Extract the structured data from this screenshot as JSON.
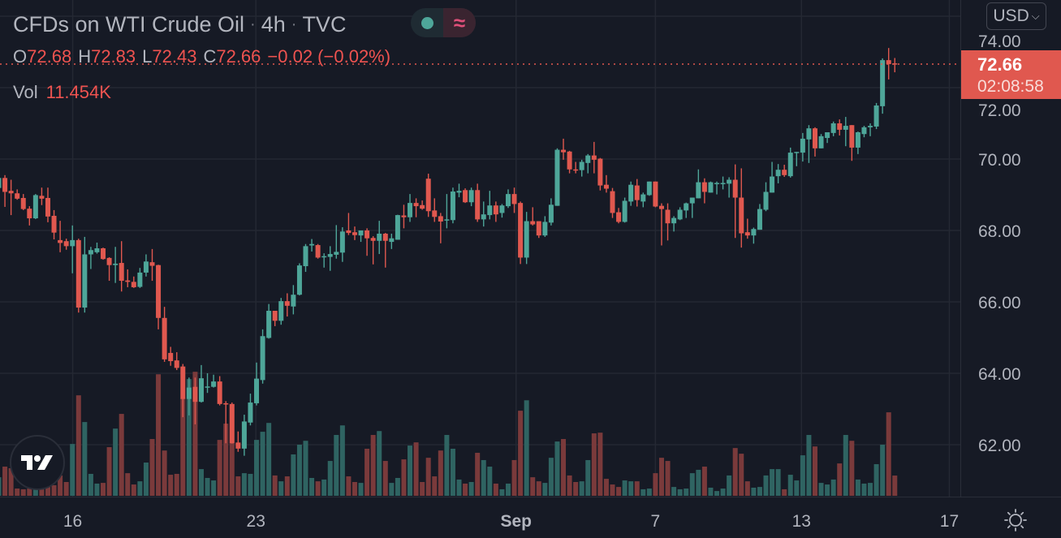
{
  "header": {
    "symbol": "CFDs on WTI Crude Oil",
    "separator": "·",
    "interval": "4h",
    "exchange": "TVC",
    "status_dot_color": "#4ea699",
    "indicator_icon": "≈"
  },
  "ohlc": {
    "o_label": "O",
    "o": "72.68",
    "h_label": "H",
    "h": "72.83",
    "l_label": "L",
    "l": "72.43",
    "c_label": "C",
    "c": "72.66",
    "change": "−0.02 (−0.02%)"
  },
  "volume": {
    "label": "Vol",
    "value": "11.454K"
  },
  "currency_button": {
    "label": "USD",
    "icon": "chevron-down-icon"
  },
  "last_price": {
    "price": "72.66",
    "countdown": "02:08:58"
  },
  "icons": {
    "logo": "tradingview-logo",
    "settings": "sun-gear-icon"
  },
  "colors": {
    "up": "#4ea699",
    "down": "#e0584f",
    "background": "#161a25",
    "grid": "#242833"
  },
  "chart_data": {
    "type": "candlestick",
    "interval": "4h",
    "last_price": 72.66,
    "y_axis": {
      "ticks": [
        "74.00",
        "72.00",
        "70.00",
        "68.00",
        "66.00",
        "64.00",
        "62.00"
      ],
      "range": [
        60.5,
        74.2
      ]
    },
    "x_axis": {
      "ticks": [
        "16",
        "23",
        "Sep",
        "7",
        "13",
        "17"
      ]
    },
    "grid": true,
    "volume_unit": "K",
    "candles_ohlcv": [
      [
        69.19,
        69.55,
        69.1,
        69.47,
        10.5
      ],
      [
        69.47,
        69.55,
        68.66,
        69.08,
        16.5
      ],
      [
        69.11,
        69.42,
        68.43,
        69.04,
        15.6
      ],
      [
        69.04,
        69.15,
        68.86,
        68.89,
        4.1
      ],
      [
        68.91,
        69.02,
        68.57,
        68.6,
        3.7
      ],
      [
        68.61,
        68.68,
        68.14,
        68.34,
        4.1
      ],
      [
        68.34,
        69.02,
        68.32,
        68.99,
        5.0
      ],
      [
        68.97,
        69.2,
        68.71,
        68.89,
        5.5
      ],
      [
        68.91,
        69.2,
        68.23,
        68.39,
        6.9
      ],
      [
        68.41,
        68.57,
        67.75,
        67.94,
        6.0
      ],
      [
        67.73,
        68.27,
        67.39,
        67.65,
        11.5
      ],
      [
        67.7,
        67.77,
        67.46,
        67.56,
        7.8
      ],
      [
        67.56,
        68.14,
        66.8,
        67.73,
        29.3
      ],
      [
        67.73,
        67.77,
        65.7,
        65.84,
        56.8
      ],
      [
        65.84,
        67.82,
        65.7,
        67.33,
        41.7
      ],
      [
        67.33,
        67.54,
        66.92,
        67.45,
        12.4
      ],
      [
        67.39,
        67.66,
        67.35,
        67.5,
        6.9
      ],
      [
        67.5,
        67.52,
        67.18,
        67.2,
        7.3
      ],
      [
        67.23,
        67.25,
        66.59,
        67.03,
        27.5
      ],
      [
        67.03,
        67.54,
        66.53,
        67.07,
        38.0
      ],
      [
        67.09,
        67.7,
        66.29,
        66.59,
        46.3
      ],
      [
        66.6,
        66.91,
        66.41,
        66.56,
        12.8
      ],
      [
        66.56,
        66.71,
        66.39,
        66.41,
        6.4
      ],
      [
        66.42,
        66.95,
        66.39,
        66.82,
        8.2
      ],
      [
        66.82,
        67.33,
        66.71,
        67.13,
        18.8
      ],
      [
        67.11,
        67.48,
        66.59,
        67.01,
        32.1
      ],
      [
        67.03,
        67.04,
        65.23,
        65.55,
        68.7
      ],
      [
        65.55,
        65.86,
        64.32,
        64.39,
        25.6
      ],
      [
        64.57,
        64.74,
        64.21,
        64.34,
        11.9
      ],
      [
        64.36,
        64.59,
        64.09,
        64.15,
        12.4
      ],
      [
        64.19,
        64.26,
        62.77,
        63.28,
        55.4
      ],
      [
        63.28,
        63.88,
        62.82,
        63.6,
        66.0
      ],
      [
        63.62,
        63.88,
        62.57,
        63.2,
        70.1
      ],
      [
        63.2,
        64.23,
        63.18,
        63.86,
        15.1
      ],
      [
        63.62,
        64.0,
        63.45,
        63.63,
        10.1
      ],
      [
        63.62,
        63.96,
        63.6,
        63.77,
        8.7
      ],
      [
        63.77,
        63.92,
        63.1,
        63.14,
        31.6
      ],
      [
        63.16,
        63.22,
        62.04,
        63.15,
        40.8
      ],
      [
        63.14,
        63.18,
        62.03,
        62.04,
        29.8
      ],
      [
        62.06,
        62.37,
        61.8,
        61.89,
        11.0
      ],
      [
        61.89,
        62.84,
        61.69,
        62.65,
        12.8
      ],
      [
        62.62,
        63.43,
        62.54,
        63.18,
        12.4
      ],
      [
        63.16,
        64.3,
        63.1,
        63.85,
        31.6
      ],
      [
        63.81,
        65.23,
        63.71,
        65.04,
        36.2
      ],
      [
        64.99,
        65.94,
        64.97,
        65.75,
        41.2
      ],
      [
        65.75,
        65.75,
        65.32,
        65.47,
        11.5
      ],
      [
        65.47,
        66.11,
        65.36,
        66.02,
        8.2
      ],
      [
        66.02,
        66.24,
        65.59,
        65.89,
        11.0
      ],
      [
        65.87,
        66.47,
        65.65,
        66.2,
        23.4
      ],
      [
        66.2,
        67.08,
        66.18,
        67.02,
        28.9
      ],
      [
        67.0,
        67.62,
        66.84,
        67.56,
        31.1
      ],
      [
        67.58,
        67.76,
        67.41,
        67.62,
        10.1
      ],
      [
        67.59,
        67.62,
        67.21,
        67.24,
        8.2
      ],
      [
        67.26,
        67.36,
        66.96,
        67.28,
        9.2
      ],
      [
        67.26,
        67.56,
        66.87,
        67.34,
        19.7
      ],
      [
        67.32,
        68.15,
        67.21,
        67.4,
        34.4
      ],
      [
        67.38,
        68.09,
        67.12,
        67.97,
        39.8
      ],
      [
        68.0,
        68.49,
        67.87,
        67.93,
        11.0
      ],
      [
        67.95,
        68.11,
        67.73,
        67.87,
        7.8
      ],
      [
        67.86,
        68.0,
        67.68,
        68.0,
        7.3
      ],
      [
        68.0,
        68.06,
        67.29,
        67.78,
        26.6
      ],
      [
        67.79,
        67.84,
        67.05,
        67.71,
        34.4
      ],
      [
        67.71,
        68.27,
        67.34,
        67.91,
        36.6
      ],
      [
        67.91,
        67.93,
        66.96,
        67.71,
        19.7
      ],
      [
        67.68,
        67.91,
        67.48,
        67.78,
        7.3
      ],
      [
        67.74,
        68.44,
        67.74,
        68.43,
        10.1
      ],
      [
        68.42,
        68.72,
        68.06,
        68.37,
        20.6
      ],
      [
        68.37,
        69.02,
        68.24,
        68.77,
        28.4
      ],
      [
        68.77,
        68.9,
        68.37,
        68.68,
        30.2
      ],
      [
        68.71,
        68.84,
        68.58,
        68.61,
        7.8
      ],
      [
        69.45,
        69.59,
        68.38,
        68.54,
        21.5
      ],
      [
        68.56,
        68.9,
        68.24,
        68.38,
        11.0
      ],
      [
        68.4,
        68.49,
        67.64,
        68.25,
        25.6
      ],
      [
        68.29,
        69.02,
        68.06,
        68.31,
        34.4
      ],
      [
        68.29,
        69.2,
        68.2,
        69.09,
        26.6
      ],
      [
        69.06,
        69.31,
        68.93,
        69.11,
        9.2
      ],
      [
        69.13,
        69.18,
        68.77,
        68.79,
        6.9
      ],
      [
        68.79,
        69.2,
        68.68,
        69.13,
        7.8
      ],
      [
        69.13,
        69.31,
        68.24,
        68.31,
        24.3
      ],
      [
        68.31,
        68.81,
        68.11,
        68.45,
        20.2
      ],
      [
        68.43,
        69.11,
        68.31,
        68.7,
        16.5
      ],
      [
        68.7,
        68.81,
        68.24,
        68.45,
        6.9
      ],
      [
        68.49,
        68.74,
        68.36,
        68.7,
        3.7
      ],
      [
        68.68,
        69.15,
        68.63,
        69.02,
        6.9
      ],
      [
        69.02,
        69.2,
        68.49,
        68.74,
        20.2
      ],
      [
        68.77,
        68.81,
        67.06,
        67.24,
        48.1
      ],
      [
        67.24,
        68.52,
        67.06,
        68.26,
        54.0
      ],
      [
        68.26,
        68.65,
        68.14,
        68.17,
        10.5
      ],
      [
        68.26,
        68.26,
        67.79,
        67.86,
        8.2
      ],
      [
        67.86,
        68.4,
        67.82,
        68.24,
        7.3
      ],
      [
        68.22,
        68.9,
        68.14,
        68.72,
        21.5
      ],
      [
        68.69,
        70.3,
        68.69,
        70.26,
        30.7
      ],
      [
        70.26,
        70.57,
        69.98,
        70.19,
        32.1
      ],
      [
        70.21,
        70.23,
        69.6,
        69.71,
        11.5
      ],
      [
        69.71,
        69.92,
        69.6,
        69.69,
        7.8
      ],
      [
        69.69,
        69.98,
        69.51,
        69.92,
        8.2
      ],
      [
        69.89,
        70.14,
        69.6,
        70.1,
        20.2
      ],
      [
        70.1,
        70.48,
        69.6,
        69.98,
        35.3
      ],
      [
        70.01,
        70.03,
        69.12,
        69.26,
        35.7
      ],
      [
        69.28,
        69.55,
        69.06,
        69.17,
        9.6
      ],
      [
        69.1,
        69.19,
        68.35,
        68.49,
        6.4
      ],
      [
        68.51,
        68.63,
        68.2,
        68.24,
        5.0
      ],
      [
        68.24,
        68.92,
        68.22,
        68.83,
        8.7
      ],
      [
        68.81,
        69.37,
        68.69,
        69.28,
        8.2
      ],
      [
        69.26,
        69.44,
        68.67,
        68.85,
        8.2
      ],
      [
        68.81,
        69.06,
        68.65,
        69.01,
        3.7
      ],
      [
        68.99,
        69.37,
        68.97,
        69.37,
        4.1
      ],
      [
        69.37,
        69.37,
        68.65,
        68.67,
        12.8
      ],
      [
        68.69,
        68.76,
        67.58,
        68.6,
        21.5
      ],
      [
        68.58,
        68.76,
        67.72,
        68.2,
        19.7
      ],
      [
        68.2,
        68.4,
        67.97,
        68.35,
        5.0
      ],
      [
        68.31,
        68.65,
        68.29,
        68.58,
        3.7
      ],
      [
        68.56,
        68.78,
        68.35,
        68.76,
        4.1
      ],
      [
        68.76,
        68.92,
        68.35,
        68.92,
        12.8
      ],
      [
        68.9,
        69.71,
        68.9,
        69.35,
        14.7
      ],
      [
        69.35,
        69.46,
        68.76,
        69.08,
        16.5
      ],
      [
        69.06,
        69.37,
        69.06,
        69.35,
        4.6
      ],
      [
        69.31,
        69.37,
        69.01,
        69.33,
        2.7
      ],
      [
        69.31,
        69.51,
        69.15,
        69.33,
        4.1
      ],
      [
        69.31,
        69.49,
        68.92,
        69.42,
        11.5
      ],
      [
        69.42,
        69.85,
        67.79,
        68.92,
        27.0
      ],
      [
        68.92,
        69.74,
        67.52,
        67.92,
        23.8
      ],
      [
        67.95,
        68.33,
        67.77,
        67.86,
        8.2
      ],
      [
        67.86,
        68.08,
        67.63,
        68.04,
        4.6
      ],
      [
        68.02,
        68.74,
        68.02,
        68.6,
        5.0
      ],
      [
        68.58,
        69.35,
        68.54,
        69.08,
        11.5
      ],
      [
        69.06,
        69.92,
        69.06,
        69.51,
        15.1
      ],
      [
        69.52,
        69.86,
        69.32,
        69.7,
        15.1
      ],
      [
        69.7,
        69.84,
        69.5,
        69.55,
        3.7
      ],
      [
        69.52,
        70.32,
        69.48,
        70.18,
        11.9
      ],
      [
        70.18,
        70.2,
        69.8,
        70.2,
        8.7
      ],
      [
        70.18,
        70.73,
        69.93,
        70.57,
        22.9
      ],
      [
        70.55,
        70.95,
        69.89,
        70.86,
        34.4
      ],
      [
        70.86,
        70.89,
        70.07,
        70.3,
        27.9
      ],
      [
        70.3,
        70.7,
        70.3,
        70.64,
        7.3
      ],
      [
        70.59,
        70.75,
        70.45,
        70.75,
        6.4
      ],
      [
        70.73,
        71.05,
        70.64,
        71.0,
        9.2
      ],
      [
        71.0,
        71.11,
        70.66,
        70.82,
        18.3
      ],
      [
        70.82,
        71.18,
        70.36,
        70.93,
        34.4
      ],
      [
        70.95,
        70.95,
        69.95,
        70.32,
        31.1
      ],
      [
        70.32,
        70.77,
        70.14,
        70.75,
        9.2
      ],
      [
        70.7,
        70.93,
        70.61,
        70.89,
        6.9
      ],
      [
        70.89,
        71.0,
        70.64,
        70.93,
        7.3
      ],
      [
        70.91,
        71.57,
        70.84,
        71.5,
        17.9
      ],
      [
        71.48,
        72.82,
        71.27,
        72.77,
        28.9
      ],
      [
        72.77,
        73.11,
        72.23,
        72.66,
        47.2
      ],
      [
        72.68,
        72.83,
        72.43,
        72.66,
        11.454
      ]
    ]
  }
}
